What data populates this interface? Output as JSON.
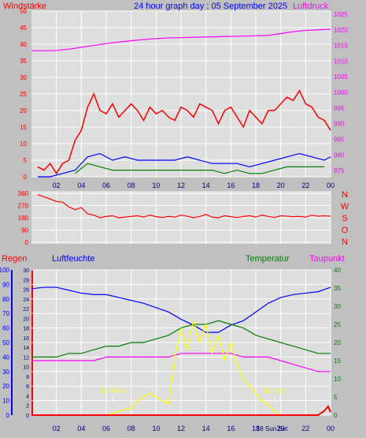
{
  "colors": {
    "background": "#c0c0c0",
    "plot_bg": "#dedede",
    "grid": "#ffffff",
    "wind": "#ff0000",
    "wind_avg": "#0000ff",
    "wind_calm": "#008000",
    "pressure": "#ff00ff",
    "direction": "#ff0000",
    "rain": "#ff0000",
    "humidity": "#0000ff",
    "temperature": "#008000",
    "dewpoint": "#ff00ff",
    "sun": "#ffff00"
  },
  "chart_data": [
    {
      "type": "line",
      "title": "24 hour graph day : 05 September 2025",
      "left_label": "Windstärke",
      "right_label": "Luftdruck",
      "x_ticks": [
        "02",
        "04",
        "06",
        "08",
        "10",
        "12",
        "14",
        "16",
        "18",
        "20",
        "22",
        "00"
      ],
      "y_left": {
        "ticks": [
          0,
          5,
          10,
          15,
          20,
          25,
          30,
          35,
          40,
          45,
          50
        ],
        "range": [
          0,
          50
        ]
      },
      "y_right": {
        "ticks": [
          975,
          980,
          985,
          990,
          995,
          1000,
          1005,
          1010,
          1015,
          1020,
          1025
        ],
        "range": [
          973,
          1026
        ]
      },
      "series": [
        {
          "name": "Windstärke",
          "axis": "left",
          "x": [
            0.5,
            1.0,
            1.5,
            2.0,
            2.5,
            3.0,
            3.5,
            4.0,
            4.5,
            5.0,
            5.5,
            6.0,
            6.5,
            7.0,
            7.5,
            8.0,
            8.5,
            9.0,
            9.5,
            10.0,
            10.5,
            11.0,
            11.5,
            12.0,
            12.5,
            13.0,
            13.5,
            14.0,
            14.5,
            15.0,
            15.5,
            16.0,
            16.5,
            17.0,
            17.5,
            18.0,
            18.5,
            19.0,
            19.5,
            20.0,
            20.5,
            21.0,
            21.5,
            22.0,
            22.5,
            23.0,
            23.5,
            24.0
          ],
          "values": [
            3,
            2,
            4,
            1,
            4,
            5,
            11,
            14,
            21,
            25,
            20,
            19,
            22,
            18,
            20,
            22,
            20,
            17,
            21,
            19,
            20,
            18,
            17,
            21,
            20,
            18,
            22,
            21,
            20,
            16,
            20,
            21,
            18,
            15,
            20,
            18,
            16,
            20,
            20,
            22,
            24,
            23,
            26,
            22,
            21,
            18,
            17,
            14
          ]
        },
        {
          "name": "Windstärke avg",
          "axis": "left",
          "x": [
            0.5,
            1.5,
            2.5,
            3.5,
            4.5,
            5.5,
            6.5,
            7.5,
            8.5,
            9.5,
            10.5,
            11.5,
            12.5,
            13.5,
            14.5,
            15.5,
            16.5,
            17.5,
            18.5,
            19.5,
            20.5,
            21.5,
            22.5,
            23.5,
            24.0
          ],
          "values": [
            0,
            0,
            1,
            2,
            6,
            7,
            5,
            6,
            5,
            5,
            5,
            5,
            6,
            5,
            4,
            4,
            4,
            3,
            4,
            5,
            6,
            7,
            6,
            5,
            6
          ]
        },
        {
          "name": "Windstärke calm",
          "axis": "left",
          "x": [
            3.5,
            4.5,
            5.5,
            6.5,
            7.5,
            8.5,
            9.5,
            10.5,
            11.5,
            12.5,
            13.5,
            14.5,
            15.5,
            16.5,
            17.5,
            18.5,
            19.5,
            20.5,
            21.5,
            22.5,
            23.5
          ],
          "values": [
            1,
            4,
            3,
            2,
            2,
            2,
            2,
            2,
            2,
            2,
            2,
            2,
            1,
            2,
            1,
            1,
            2,
            3,
            3,
            3,
            3
          ]
        },
        {
          "name": "Luftdruck",
          "axis": "right",
          "x": [
            0,
            1,
            2,
            3,
            4,
            5,
            6,
            7,
            8,
            9,
            10,
            11,
            12,
            13,
            14,
            15,
            16,
            17,
            18,
            19,
            20,
            21,
            22,
            23,
            24
          ],
          "values": [
            1013.3,
            1013.3,
            1013.4,
            1013.8,
            1014.4,
            1015.0,
            1015.6,
            1016.1,
            1016.5,
            1016.9,
            1017.2,
            1017.4,
            1017.5,
            1017.6,
            1017.7,
            1017.8,
            1017.9,
            1018.0,
            1018.1,
            1018.2,
            1018.8,
            1019.4,
            1019.8,
            1020.0,
            1020.2
          ]
        }
      ]
    },
    {
      "type": "line",
      "y_ticks": [
        0,
        90,
        180,
        270,
        360
      ],
      "range": [
        0,
        360
      ],
      "compass_letters": [
        "N",
        "W",
        "S",
        "O",
        "N"
      ],
      "series": [
        {
          "name": "Windrichtung",
          "x": [
            0.5,
            1.0,
            1.5,
            2.0,
            2.5,
            3.0,
            3.5,
            4.0,
            4.5,
            5.0,
            5.5,
            6.0,
            6.5,
            7.0,
            7.5,
            8.0,
            8.5,
            9.0,
            9.5,
            10.0,
            10.5,
            11.0,
            11.5,
            12.0,
            12.5,
            13.0,
            13.5,
            14.0,
            14.5,
            15.0,
            15.5,
            16.0,
            16.5,
            17.0,
            17.5,
            18.0,
            18.5,
            19.0,
            19.5,
            20.0,
            20.5,
            21.0,
            21.5,
            22.0,
            22.5,
            23.0,
            23.5,
            24.0
          ],
          "values": [
            350,
            335,
            318,
            300,
            295,
            260,
            240,
            255,
            210,
            200,
            180,
            190,
            195,
            180,
            185,
            190,
            195,
            185,
            200,
            188,
            182,
            190,
            185,
            200,
            192,
            180,
            190,
            205,
            185,
            180,
            195,
            188,
            182,
            190,
            195,
            185,
            200,
            190,
            182,
            195,
            192,
            188,
            190,
            185,
            200,
            192,
            195,
            192
          ]
        }
      ]
    },
    {
      "type": "line",
      "labels": [
        "Regen",
        "Luftfeuchte",
        "Temperatur",
        "Taupunkt"
      ],
      "x_ticks": [
        "02",
        "04",
        "06",
        "08",
        "10",
        "12",
        "14",
        "16",
        "18",
        "20",
        "22",
        "00"
      ],
      "y_rain": {
        "ticks": [
          0,
          2,
          4,
          6,
          8,
          10,
          12,
          14,
          16,
          18,
          20
        ],
        "range": [
          0,
          20
        ]
      },
      "y_humidity": {
        "ticks": [
          0,
          10,
          20,
          30,
          40,
          50,
          60,
          70,
          80,
          90,
          100
        ],
        "range": [
          0,
          100
        ]
      },
      "y_temperature": {
        "ticks": [
          0,
          2,
          4,
          6,
          8,
          10,
          12,
          14,
          16,
          18,
          20,
          22,
          24,
          26,
          28,
          30
        ],
        "range": [
          0,
          30
        ]
      },
      "y_right": {
        "ticks": [
          0,
          5,
          10,
          15,
          20,
          25,
          30,
          35,
          40
        ],
        "range": [
          0,
          40
        ]
      },
      "annotations": [
        {
          "text": "Sun Rise",
          "x": 6.5
        },
        {
          "text": "Sun Set",
          "x": 19.5
        },
        {
          "text": "18 Sun Set",
          "x": 19.3
        }
      ],
      "series": [
        {
          "name": "Luftfeuchte",
          "axis": "humidity",
          "x": [
            0,
            1,
            2,
            3,
            4,
            5,
            6,
            7,
            8,
            9,
            10,
            11,
            12,
            13,
            14,
            15,
            16,
            17,
            18,
            19,
            20,
            21,
            22,
            23,
            24
          ],
          "values": [
            87,
            88,
            88,
            86,
            84,
            83,
            83,
            81,
            79,
            77,
            74,
            71,
            66,
            62,
            57,
            57,
            62,
            65,
            71,
            77,
            81,
            83,
            84,
            85,
            88
          ]
        },
        {
          "name": "Temperatur",
          "axis": "right",
          "x": [
            0,
            1,
            2,
            3,
            4,
            5,
            6,
            7,
            8,
            9,
            10,
            11,
            12,
            13,
            14,
            15,
            16,
            17,
            18,
            19,
            20,
            21,
            22,
            23,
            24
          ],
          "values": [
            16,
            16,
            16,
            17,
            17,
            18,
            19,
            19,
            20,
            20,
            21,
            22,
            24,
            25,
            25,
            26,
            25,
            24,
            22,
            21,
            20,
            19,
            18,
            17,
            17
          ]
        },
        {
          "name": "Taupunkt",
          "axis": "right",
          "x": [
            0,
            1,
            2,
            3,
            4,
            5,
            6,
            7,
            8,
            9,
            10,
            11,
            12,
            13,
            14,
            15,
            16,
            17,
            18,
            19,
            20,
            21,
            22,
            23,
            24
          ],
          "values": [
            15,
            15,
            15,
            15,
            15,
            15,
            16,
            16,
            16,
            16,
            16,
            16,
            17,
            17,
            17,
            17,
            17,
            16,
            16,
            16,
            15,
            14,
            13,
            12,
            12
          ]
        },
        {
          "name": "Sonne",
          "axis": "right",
          "x": [
            6.0,
            6.5,
            7.0,
            7.5,
            8.0,
            8.5,
            9.0,
            9.5,
            10.0,
            10.5,
            11.0,
            11.5,
            12.0,
            12.5,
            13.0,
            13.5,
            14.0,
            14.5,
            15.0,
            15.5,
            16.0,
            16.5,
            17.0,
            17.5,
            18.0,
            18.5,
            19.0,
            19.5,
            20.0
          ],
          "values": [
            0,
            0.5,
            1,
            1.5,
            2,
            4,
            5,
            6,
            5,
            4,
            3,
            16,
            24,
            18,
            26,
            20,
            25,
            17,
            22,
            15,
            20,
            14,
            10,
            8,
            6,
            4,
            3,
            1,
            0
          ]
        },
        {
          "name": "Regen",
          "axis": "rain",
          "x": [
            0,
            6,
            12,
            18,
            23,
            23.5,
            23.8,
            24.0
          ],
          "values": [
            0,
            0,
            0,
            0,
            0,
            0.6,
            1.2,
            0.4
          ]
        }
      ]
    }
  ]
}
